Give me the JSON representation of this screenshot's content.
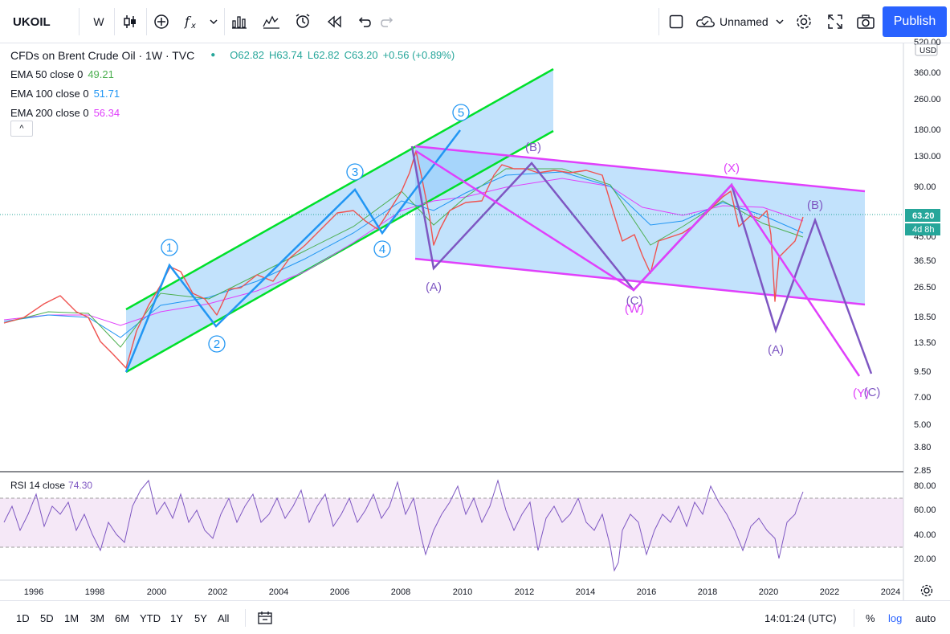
{
  "toolbar": {
    "symbol": "UKOIL",
    "interval": "W",
    "layout_name": "Unnamed",
    "publish_label": "Publish",
    "icons": [
      "candles-icon",
      "add-indicator-icon",
      "fx-icon",
      "chevron-down-icon",
      "compare-icon",
      "chart-type-icon",
      "alert-icon",
      "replay-icon",
      "undo-icon",
      "redo-icon",
      "square-icon",
      "cloud-icon",
      "gear-icon",
      "fullscreen-icon",
      "camera-icon"
    ]
  },
  "legend": {
    "title": "CFDs on Brent Crude Oil · 1W · TVC",
    "ohlc": {
      "open": "O62.82",
      "high": "H63.74",
      "low": "L62.82",
      "close": "C63.20",
      "change": "+0.56 (+0.89%)"
    },
    "ema50": {
      "label": "EMA 50 close 0",
      "value": "49.21",
      "color": "#4caf50"
    },
    "ema100": {
      "label": "EMA 100 close 0",
      "value": "51.71",
      "color": "#2196f3"
    },
    "ema200": {
      "label": "EMA 200 close 0",
      "value": "56.34",
      "color": "#e040fb"
    },
    "collapse_label": "^"
  },
  "rsi": {
    "label": "RSI 14 close",
    "value": "74.30",
    "color": "#7e57c2"
  },
  "price_scale": {
    "currency": "USD",
    "ticks": [
      "520.00",
      "360.00",
      "260.00",
      "180.00",
      "130.00",
      "90.00",
      "63.20",
      "45.00",
      "36.50",
      "26.50",
      "18.50",
      "13.50",
      "9.50",
      "7.00",
      "5.00",
      "3.80",
      "2.85"
    ],
    "last_price": "63.20",
    "countdown": "4d 8h",
    "rsi_ticks": [
      "80.00",
      "60.00",
      "40.00",
      "20.00"
    ]
  },
  "time_axis": {
    "labels": [
      "1996",
      "1998",
      "2000",
      "2002",
      "2004",
      "2006",
      "2008",
      "2010",
      "2012",
      "2014",
      "2016",
      "2018",
      "2020",
      "2022",
      "2024"
    ]
  },
  "annotations": {
    "impulse": [
      "1",
      "2",
      "3",
      "4",
      "5"
    ],
    "corrective": [
      "(A)",
      "(B)",
      "(C)",
      "(W)",
      "(X)",
      "(B)",
      "(A)",
      "(Y)",
      "(C)"
    ]
  },
  "bottombar": {
    "ranges": [
      "1D",
      "5D",
      "1M",
      "3M",
      "6M",
      "YTD",
      "1Y",
      "5Y",
      "All"
    ],
    "time": "14:01:24 (UTC)",
    "percent": "%",
    "log": "log",
    "auto": "auto"
  },
  "chart_data": {
    "type": "line",
    "title": "CFDs on Brent Crude Oil · 1W · TVC",
    "log_scale": true,
    "xlim": [
      1995,
      2024.5
    ],
    "ylim": [
      2.85,
      520
    ],
    "last_price": 63.2,
    "series": [
      {
        "name": "Price",
        "points": [
          [
            1995,
            17
          ],
          [
            1996,
            19
          ],
          [
            1997,
            21
          ],
          [
            1998,
            13
          ],
          [
            1999,
            10
          ],
          [
            1999.5,
            17
          ],
          [
            2000,
            28
          ],
          [
            2000.5,
            33
          ],
          [
            2001,
            25
          ],
          [
            2001.5,
            22
          ],
          [
            2002,
            19
          ],
          [
            2002.5,
            26
          ],
          [
            2003,
            28
          ],
          [
            2003.5,
            29
          ],
          [
            2004,
            34
          ],
          [
            2004.5,
            40
          ],
          [
            2005,
            47
          ],
          [
            2005.5,
            56
          ],
          [
            2006,
            64
          ],
          [
            2006.5,
            72
          ],
          [
            2007,
            56
          ],
          [
            2007.5,
            72
          ],
          [
            2008,
            95
          ],
          [
            2008.5,
            140
          ],
          [
            2008.8,
            60
          ],
          [
            2009,
            42
          ],
          [
            2009.5,
            68
          ],
          [
            2010,
            76
          ],
          [
            2010.5,
            75
          ],
          [
            2011,
            95
          ],
          [
            2011.3,
            120
          ],
          [
            2012,
            115
          ],
          [
            2012.5,
            100
          ],
          [
            2013,
            112
          ],
          [
            2014,
            108
          ],
          [
            2014.5,
            112
          ],
          [
            2015,
            55
          ],
          [
            2015.5,
            60
          ],
          [
            2016,
            30
          ],
          [
            2016.5,
            46
          ],
          [
            2017,
            55
          ],
          [
            2017.5,
            48
          ],
          [
            2018,
            70
          ],
          [
            2018.8,
            86
          ],
          [
            2019,
            55
          ],
          [
            2019.5,
            65
          ],
          [
            2020,
            66
          ],
          [
            2020.25,
            22
          ],
          [
            2020.5,
            42
          ],
          [
            2021,
            63.2
          ]
        ]
      }
    ]
  }
}
